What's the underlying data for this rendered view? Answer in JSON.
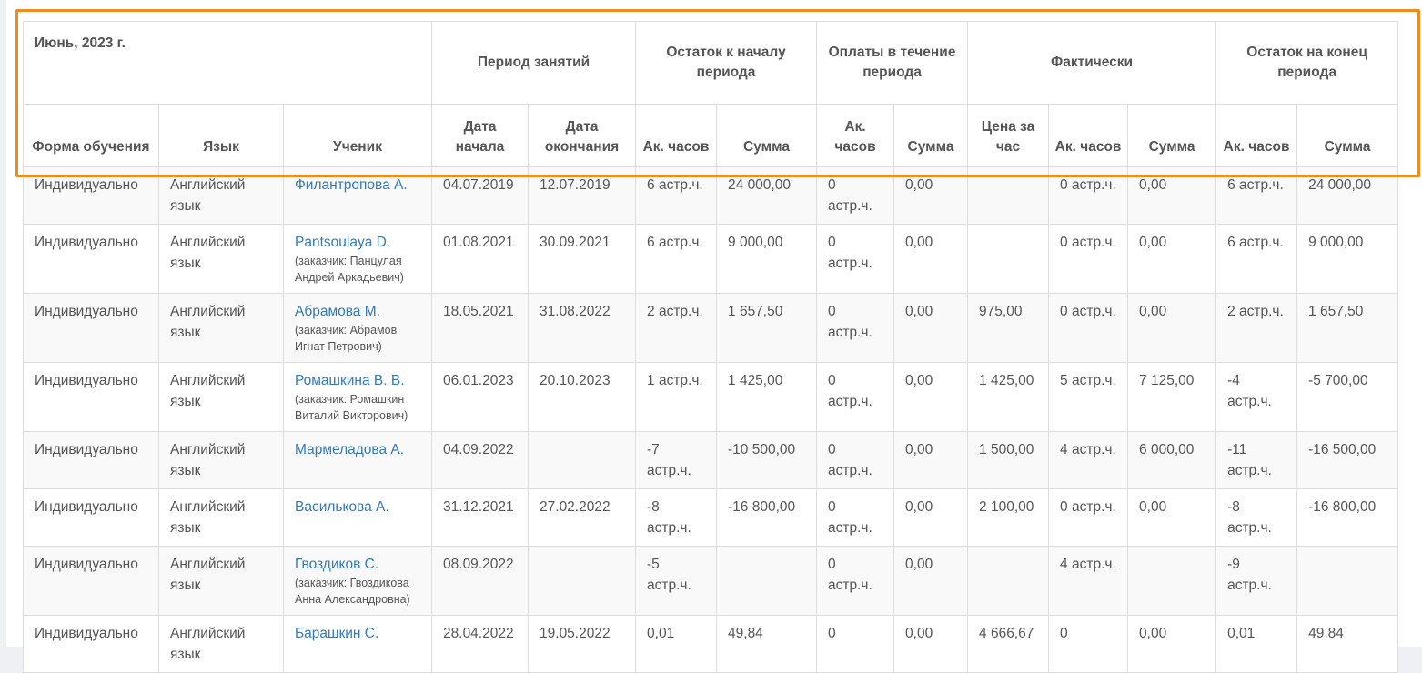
{
  "report": {
    "month_title": "Июнь, 2023 г.",
    "groups": {
      "period": "Период занятий",
      "start_balance": "Остаток к началу периода",
      "payments": "Оплаты в течение периода",
      "actual": "Фактически",
      "end_balance": "Остаток на конец периода"
    },
    "columns": {
      "form": "Форма обучения",
      "language": "Язык",
      "student": "Ученик",
      "date_start": "Дата начала",
      "date_end": "Дата окончания",
      "start_hours": "Ак. часов",
      "start_sum": "Сумма",
      "pay_hours": "Ак. часов",
      "pay_sum": "Сумма",
      "price": "Цена за час",
      "act_hours": "Ак. часов",
      "act_sum": "Сумма",
      "end_hours": "Ак. часов",
      "end_sum": "Сумма"
    },
    "rows": [
      {
        "form": "Индивидуально",
        "language": "Английский язык",
        "student": "Филантропова А.",
        "customer": "",
        "date_start": "04.07.2019",
        "date_end": "12.07.2019",
        "start_hours": "6 астр.ч.",
        "start_sum": "24 000,00",
        "pay_hours": "0 астр.ч.",
        "pay_sum": "0,00",
        "price": "",
        "act_hours": "0 астр.ч.",
        "act_sum": "0,00",
        "end_hours": "6 астр.ч.",
        "end_sum": "24 000,00"
      },
      {
        "form": "Индивидуально",
        "language": "Английский язык",
        "student": "Pantsoulaya D.",
        "customer": "(заказчик: Панцулая Андрей Аркадьевич)",
        "date_start": "01.08.2021",
        "date_end": "30.09.2021",
        "start_hours": "6 астр.ч.",
        "start_sum": "9 000,00",
        "pay_hours": "0 астр.ч.",
        "pay_sum": "0,00",
        "price": "",
        "act_hours": "0 астр.ч.",
        "act_sum": "0,00",
        "end_hours": "6 астр.ч.",
        "end_sum": "9 000,00"
      },
      {
        "form": "Индивидуально",
        "language": "Английский язык",
        "student": "Абрамова М.",
        "customer": "(заказчик: Абрамов Игнат Петрович)",
        "date_start": "18.05.2021",
        "date_end": "31.08.2022",
        "start_hours": "2 астр.ч.",
        "start_sum": "1 657,50",
        "pay_hours": "0 астр.ч.",
        "pay_sum": "0,00",
        "price": "975,00",
        "act_hours": "0 астр.ч.",
        "act_sum": "0,00",
        "end_hours": "2 астр.ч.",
        "end_sum": "1 657,50"
      },
      {
        "form": "Индивидуально",
        "language": "Английский язык",
        "student": "Ромашкина В. В.",
        "customer": "(заказчик: Ромашкин Виталий Викторович)",
        "date_start": "06.01.2023",
        "date_end": "20.10.2023",
        "start_hours": "1 астр.ч.",
        "start_sum": "1 425,00",
        "pay_hours": "0 астр.ч.",
        "pay_sum": "0,00",
        "price": "1 425,00",
        "act_hours": "5 астр.ч.",
        "act_sum": "7 125,00",
        "end_hours": "-4 астр.ч.",
        "end_sum": "-5 700,00"
      },
      {
        "form": "Индивидуально",
        "language": "Английский язык",
        "student": "Мармеладова А.",
        "customer": "",
        "date_start": "04.09.2022",
        "date_end": "",
        "start_hours": "-7 астр.ч.",
        "start_sum": "-10 500,00",
        "pay_hours": "0 астр.ч.",
        "pay_sum": "0,00",
        "price": "1 500,00",
        "act_hours": "4 астр.ч.",
        "act_sum": "6 000,00",
        "end_hours": "-11 астр.ч.",
        "end_sum": "-16 500,00"
      },
      {
        "form": "Индивидуально",
        "language": "Английский язык",
        "student": "Василькова А.",
        "customer": "",
        "date_start": "31.12.2021",
        "date_end": "27.02.2022",
        "start_hours": "-8 астр.ч.",
        "start_sum": "-16 800,00",
        "pay_hours": "0 астр.ч.",
        "pay_sum": "0,00",
        "price": "2 100,00",
        "act_hours": "0 астр.ч.",
        "act_sum": "0,00",
        "end_hours": "-8 астр.ч.",
        "end_sum": "-16 800,00"
      },
      {
        "form": "Индивидуально",
        "language": "Английский язык",
        "student": "Гвоздиков С.",
        "customer": "(заказчик: Гвоздикова Анна Александровна)",
        "date_start": "08.09.2022",
        "date_end": "",
        "start_hours": "-5 астр.ч.",
        "start_sum": "",
        "pay_hours": "0 астр.ч.",
        "pay_sum": "0,00",
        "price": "",
        "act_hours": "4 астр.ч.",
        "act_sum": "",
        "end_hours": "-9 астр.ч.",
        "end_sum": ""
      },
      {
        "form": "Индивидуально",
        "language": "Английский язык",
        "student": "Барашкин С.",
        "customer": "",
        "date_start": "28.04.2022",
        "date_end": "19.05.2022",
        "start_hours": "0,01",
        "start_sum": "49,84",
        "pay_hours": "0",
        "pay_sum": "0,00",
        "price": "4 666,67",
        "act_hours": "0",
        "act_sum": "0,00",
        "end_hours": "0,01",
        "end_sum": "49,84"
      }
    ]
  },
  "colors": {
    "highlight": "#f08b1d",
    "link": "#337ab7",
    "text": "#555555"
  }
}
